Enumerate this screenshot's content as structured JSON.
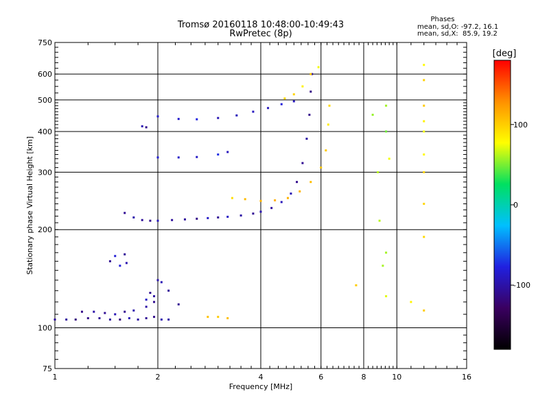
{
  "chart_data": {
    "type": "scatter",
    "title": "Tromsø 20160118 10:48:00-10:49:43",
    "subtitle": "RwPretec (8p)",
    "xlabel": "Frequency [MHz]",
    "ylabel": "Stationary phase Virtual Height [km]",
    "x_scale": "log",
    "y_scale": "log",
    "xlim": [
      1,
      16
    ],
    "ylim": [
      75,
      750
    ],
    "x_ticks": [
      1,
      2,
      4,
      6,
      8,
      10,
      16
    ],
    "y_ticks": [
      75,
      100,
      200,
      300,
      400,
      500,
      600,
      750
    ],
    "grid": true,
    "phase_info": {
      "title": "Phases",
      "line1": "mean, sd,O: -97.2, 16.1",
      "line2": "mean, sd,X:  85.9, 19.2"
    },
    "colorbar": {
      "label": "[deg]",
      "range": [
        -180,
        180
      ],
      "ticks": [
        -100,
        0,
        100
      ],
      "colors": [
        "#000000",
        "#3a0060",
        "#2020e0",
        "#00c0ff",
        "#00e060",
        "#ffff00",
        "#ff9000",
        "#ff0000"
      ]
    },
    "series": [
      {
        "values": [
          [
            1.0,
            106
          ],
          [
            1.08,
            106
          ],
          [
            1.15,
            106
          ],
          [
            1.25,
            107
          ],
          [
            1.35,
            107
          ],
          [
            1.45,
            106
          ],
          [
            1.55,
            106
          ],
          [
            1.65,
            107
          ],
          [
            1.75,
            106
          ],
          [
            1.85,
            107
          ],
          [
            1.95,
            108
          ],
          [
            2.05,
            106
          ],
          [
            2.15,
            106
          ]
        ],
        "phase": -105
      },
      {
        "values": [
          [
            1.2,
            112
          ],
          [
            1.3,
            112
          ],
          [
            1.4,
            111
          ],
          [
            1.5,
            110
          ],
          [
            1.6,
            112
          ],
          [
            1.7,
            113
          ],
          [
            1.85,
            116
          ],
          [
            1.95,
            120
          ]
        ],
        "phase": -100
      },
      {
        "values": [
          [
            1.45,
            160
          ],
          [
            1.5,
            166
          ],
          [
            1.55,
            155
          ],
          [
            1.6,
            168
          ],
          [
            1.62,
            158
          ]
        ],
        "phase": -95
      },
      {
        "values": [
          [
            1.85,
            122
          ],
          [
            1.9,
            128
          ],
          [
            1.95,
            125
          ],
          [
            2.0,
            140
          ],
          [
            2.05,
            138
          ],
          [
            2.15,
            130
          ],
          [
            2.3,
            118
          ]
        ],
        "phase": -100
      },
      {
        "values": [
          [
            1.8,
            415
          ],
          [
            1.85,
            412
          ]
        ],
        "phase": -110
      },
      {
        "values": [
          [
            1.6,
            225
          ],
          [
            1.7,
            218
          ],
          [
            1.8,
            214
          ],
          [
            1.9,
            213
          ],
          [
            2.0,
            213
          ],
          [
            2.2,
            214
          ],
          [
            2.4,
            215
          ],
          [
            2.6,
            216
          ],
          [
            2.8,
            217
          ],
          [
            3.0,
            218
          ],
          [
            3.2,
            219
          ],
          [
            3.5,
            221
          ],
          [
            3.8,
            224
          ],
          [
            4.0,
            227
          ],
          [
            4.3,
            233
          ],
          [
            4.6,
            243
          ],
          [
            4.9,
            258
          ],
          [
            5.1,
            280
          ],
          [
            5.3,
            320
          ],
          [
            5.45,
            380
          ],
          [
            5.55,
            450
          ],
          [
            5.6,
            530
          ],
          [
            5.65,
            600
          ]
        ],
        "phase": -100
      },
      {
        "values": [
          [
            2.0,
            445
          ],
          [
            2.3,
            437
          ],
          [
            2.6,
            436
          ],
          [
            3.0,
            440
          ],
          [
            3.4,
            448
          ],
          [
            3.8,
            460
          ],
          [
            4.2,
            472
          ],
          [
            4.6,
            485
          ],
          [
            5.0,
            495
          ]
        ],
        "phase": -90
      },
      {
        "values": [
          [
            2.0,
            333
          ],
          [
            2.3,
            333
          ],
          [
            2.6,
            334
          ],
          [
            3.0,
            340
          ],
          [
            3.2,
            346
          ]
        ],
        "phase": -80
      },
      {
        "values": [
          [
            3.3,
            250
          ],
          [
            3.6,
            248
          ],
          [
            4.0,
            245
          ],
          [
            4.4,
            246
          ],
          [
            4.8,
            250
          ],
          [
            5.2,
            262
          ],
          [
            5.6,
            280
          ],
          [
            6.0,
            310
          ],
          [
            6.2,
            350
          ],
          [
            6.3,
            420
          ],
          [
            6.35,
            480
          ]
        ],
        "phase": 100
      },
      {
        "values": [
          [
            2.8,
            108
          ],
          [
            3.0,
            108
          ],
          [
            3.2,
            107
          ]
        ],
        "phase": 110
      },
      {
        "values": [
          [
            4.7,
            505
          ],
          [
            5.0,
            520
          ],
          [
            5.3,
            550
          ],
          [
            5.6,
            600
          ],
          [
            5.9,
            630
          ]
        ],
        "phase": 90
      },
      {
        "values": [
          [
            8.5,
            450
          ],
          [
            8.8,
            300
          ],
          [
            9.3,
            480
          ],
          [
            9.3,
            400
          ],
          [
            9.5,
            330
          ],
          [
            9.3,
            170
          ],
          [
            9.3,
            125
          ],
          [
            8.9,
            213
          ],
          [
            9.1,
            155
          ]
        ],
        "phase": 60
      },
      {
        "values": [
          [
            12.0,
            640
          ],
          [
            12.0,
            575
          ],
          [
            12.0,
            480
          ],
          [
            12.0,
            430
          ],
          [
            12.0,
            400
          ],
          [
            12.0,
            340
          ],
          [
            12.0,
            300
          ],
          [
            12.0,
            240
          ],
          [
            12.0,
            190
          ],
          [
            12.0,
            113
          ],
          [
            11.0,
            120
          ],
          [
            7.6,
            135
          ]
        ],
        "phase": 90
      }
    ]
  }
}
